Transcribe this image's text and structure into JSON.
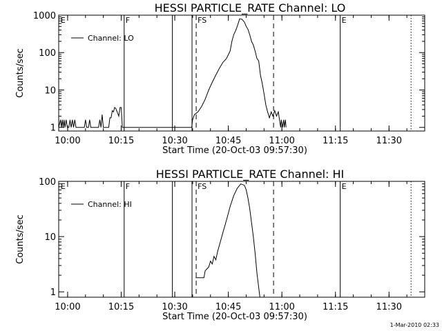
{
  "footer_timestamp": "1-Mar-2010 02:33",
  "chart_data": [
    {
      "type": "line",
      "title": "HESSI PARTICLE_RATE Channel: LO",
      "xlabel": "Start Time (20-Oct-03 09:57:30)",
      "ylabel": "Counts/sec",
      "y_scale": "log",
      "xlim": [
        "09:57:30",
        "11:40:00"
      ],
      "ylim": [
        0.8,
        1000
      ],
      "x_tick_labels": [
        "10:00",
        "10:15",
        "10:30",
        "10:45",
        "11:00",
        "11:15",
        "11:30"
      ],
      "y_tick_labels": [
        "1",
        "10",
        "100",
        "1000"
      ],
      "legend": {
        "label": "Channel: LO",
        "placement": "top-left"
      },
      "annotations": [
        {
          "label": "E",
          "x": "09:57:40",
          "style": "none"
        },
        {
          "label": "F",
          "x": "10:15:50",
          "style": "solid"
        },
        {
          "label": "",
          "x": "10:29:20",
          "style": "solid"
        },
        {
          "label": "",
          "x": "10:34:50",
          "style": "solid"
        },
        {
          "label": "FS",
          "x": "10:36:00",
          "style": "dashed"
        },
        {
          "label": "",
          "x": "10:57:40",
          "style": "dashed"
        },
        {
          "label": "E",
          "x": "11:16:20",
          "style": "solid"
        },
        {
          "label": "",
          "x": "11:36:10",
          "style": "dotted"
        }
      ],
      "series": [
        {
          "name": "Channel: LO",
          "points": [
            [
              "09:57:30",
              1
            ],
            [
              "09:58:00",
              1.6
            ],
            [
              "09:58:15",
              1
            ],
            [
              "09:58:30",
              1.6
            ],
            [
              "09:58:45",
              1
            ],
            [
              "09:59:00",
              1.6
            ],
            [
              "09:59:15",
              1
            ],
            [
              "09:59:35",
              1.6
            ],
            [
              "09:59:55",
              1
            ],
            [
              "10:00:20",
              1
            ],
            [
              "10:00:40",
              1.6
            ],
            [
              "10:01:00",
              1
            ],
            [
              "10:01:20",
              1.6
            ],
            [
              "10:01:40",
              1
            ],
            [
              "10:02:00",
              1.6
            ],
            [
              "10:02:20",
              1
            ],
            [
              "10:04:40",
              1
            ],
            [
              "10:05:00",
              1.6
            ],
            [
              "10:05:20",
              1
            ],
            [
              "10:05:50",
              1
            ],
            [
              "10:06:10",
              1.6
            ],
            [
              "10:06:30",
              1
            ],
            [
              "10:08:40",
              1
            ],
            [
              "10:09:00",
              1.6
            ],
            [
              "10:09:20",
              1
            ],
            [
              "10:09:40",
              2.2
            ],
            [
              "10:10:00",
              1
            ],
            [
              "10:11:30",
              1
            ],
            [
              "10:11:50",
              1.8
            ],
            [
              "10:12:10",
              1.8
            ],
            [
              "10:12:30",
              2.8
            ],
            [
              "10:12:50",
              2.6
            ],
            [
              "10:13:10",
              3.4
            ],
            [
              "10:13:30",
              3.2
            ],
            [
              "10:14:00",
              2.4
            ],
            [
              "10:14:20",
              2
            ],
            [
              "10:14:40",
              3.4
            ],
            [
              "10:15:00",
              3.4
            ],
            [
              "10:15:20",
              1
            ],
            [
              "10:34:45",
              1
            ],
            [
              "10:35:00",
              1.6
            ],
            [
              "10:35:30",
              2.2
            ],
            [
              "10:36:30",
              2.6
            ],
            [
              "10:37:30",
              3.6
            ],
            [
              "10:38:30",
              5.6
            ],
            [
              "10:39:30",
              10
            ],
            [
              "10:40:30",
              16
            ],
            [
              "10:41:30",
              25
            ],
            [
              "10:42:30",
              38
            ],
            [
              "10:43:30",
              55
            ],
            [
              "10:44:30",
              70
            ],
            [
              "10:45:30",
              110
            ],
            [
              "10:46:00",
              200
            ],
            [
              "10:46:30",
              300
            ],
            [
              "10:47:00",
              380
            ],
            [
              "10:47:30",
              500
            ],
            [
              "10:48:10",
              800
            ],
            [
              "10:48:50",
              780
            ],
            [
              "10:49:30",
              650
            ],
            [
              "10:50:00",
              500
            ],
            [
              "10:50:30",
              420
            ],
            [
              "10:51:00",
              300
            ],
            [
              "10:51:30",
              200
            ],
            [
              "10:52:00",
              160
            ],
            [
              "10:52:30",
              110
            ],
            [
              "10:53:00",
              70
            ],
            [
              "10:53:30",
              60
            ],
            [
              "10:54:00",
              25
            ],
            [
              "10:54:30",
              15
            ],
            [
              "10:55:00",
              8
            ],
            [
              "10:55:30",
              4
            ],
            [
              "10:56:00",
              2.6
            ],
            [
              "10:56:30",
              1.8
            ],
            [
              "10:57:00",
              2.6
            ],
            [
              "10:57:30",
              2
            ],
            [
              "10:58:00",
              2.8
            ],
            [
              "10:58:30",
              2
            ],
            [
              "10:59:00",
              2.6
            ],
            [
              "10:59:20",
              1.6
            ],
            [
              "10:59:40",
              1
            ],
            [
              "10:59:50",
              1.6
            ],
            [
              "11:00:10",
              1
            ],
            [
              "11:00:30",
              1.6
            ],
            [
              "11:00:40",
              1
            ],
            [
              "11:01:00",
              1.6
            ],
            [
              "11:01:10",
              1
            ]
          ]
        }
      ]
    },
    {
      "type": "line",
      "title": "HESSI PARTICLE_RATE Channel: HI",
      "xlabel": "Start Time (20-Oct-03 09:57:30)",
      "ylabel": "Counts/sec",
      "y_scale": "log",
      "xlim": [
        "09:57:30",
        "11:40:00"
      ],
      "ylim": [
        0.8,
        100
      ],
      "x_tick_labels": [
        "10:00",
        "10:15",
        "10:30",
        "10:45",
        "11:00",
        "11:15",
        "11:30"
      ],
      "y_tick_labels": [
        "1",
        "10",
        "100"
      ],
      "legend": {
        "label": "Channel: HI",
        "placement": "top-left"
      },
      "annotations": [
        {
          "label": "E",
          "x": "09:57:40",
          "style": "none"
        },
        {
          "label": "F",
          "x": "10:15:50",
          "style": "solid"
        },
        {
          "label": "",
          "x": "10:29:20",
          "style": "solid"
        },
        {
          "label": "",
          "x": "10:34:50",
          "style": "solid"
        },
        {
          "label": "FS",
          "x": "10:36:00",
          "style": "dashed"
        },
        {
          "label": "",
          "x": "10:57:40",
          "style": "dashed"
        },
        {
          "label": "E",
          "x": "11:16:20",
          "style": "solid"
        },
        {
          "label": "",
          "x": "11:36:10",
          "style": "dotted"
        }
      ],
      "series": [
        {
          "name": "Channel: HI",
          "points": [
            [
              "10:35:50",
              1.8
            ],
            [
              "10:38:10",
              1.8
            ],
            [
              "10:38:30",
              2.4
            ],
            [
              "10:39:00",
              2.6
            ],
            [
              "10:39:30",
              2.8
            ],
            [
              "10:40:00",
              3.6
            ],
            [
              "10:40:30",
              3.2
            ],
            [
              "10:41:00",
              4.4
            ],
            [
              "10:41:30",
              3.8
            ],
            [
              "10:42:00",
              5.4
            ],
            [
              "10:42:30",
              7
            ],
            [
              "10:43:30",
              12
            ],
            [
              "10:44:30",
              20
            ],
            [
              "10:45:30",
              35
            ],
            [
              "10:46:30",
              55
            ],
            [
              "10:47:30",
              75
            ],
            [
              "10:48:30",
              90
            ],
            [
              "10:49:30",
              85
            ],
            [
              "10:50:00",
              70
            ],
            [
              "10:50:30",
              50
            ],
            [
              "10:51:00",
              32
            ],
            [
              "10:51:30",
              18
            ],
            [
              "10:52:00",
              10
            ],
            [
              "10:52:30",
              5
            ],
            [
              "10:53:00",
              2.2
            ],
            [
              "10:53:30",
              1.2
            ],
            [
              "10:53:50",
              0.8
            ]
          ]
        }
      ]
    }
  ]
}
